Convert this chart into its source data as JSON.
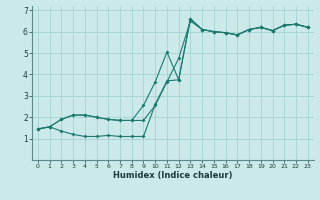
{
  "xlabel": "Humidex (Indice chaleur)",
  "bg_color": "#cce9ea",
  "line_color": "#1a7a6e",
  "grid_color": "#9ecece",
  "xlim": [
    -0.5,
    23.5
  ],
  "ylim": [
    0,
    7.2
  ],
  "xticks": [
    0,
    1,
    2,
    3,
    4,
    5,
    6,
    7,
    8,
    9,
    10,
    11,
    12,
    13,
    14,
    15,
    16,
    17,
    18,
    19,
    20,
    21,
    22,
    23
  ],
  "yticks": [
    1,
    2,
    3,
    4,
    5,
    6,
    7
  ],
  "line1_x": [
    0,
    1,
    2,
    3,
    4,
    5,
    6,
    7,
    8,
    9,
    10,
    11,
    12,
    13,
    14,
    15,
    16,
    17,
    18,
    19,
    20,
    21,
    22,
    23
  ],
  "line1_y": [
    1.45,
    1.55,
    1.35,
    1.2,
    1.1,
    1.1,
    1.15,
    1.1,
    1.1,
    1.1,
    2.6,
    3.7,
    3.75,
    6.6,
    6.1,
    6.0,
    5.95,
    5.85,
    6.1,
    6.2,
    6.05,
    6.3,
    6.35,
    6.2
  ],
  "line2_x": [
    0,
    1,
    2,
    3,
    4,
    5,
    6,
    7,
    8,
    9,
    10,
    11,
    12,
    13,
    14,
    15,
    16,
    17,
    18,
    19,
    20,
    21,
    22,
    23
  ],
  "line2_y": [
    1.45,
    1.55,
    1.9,
    2.1,
    2.1,
    2.0,
    1.9,
    1.85,
    1.85,
    2.55,
    3.65,
    5.05,
    3.75,
    6.6,
    6.1,
    6.0,
    5.95,
    5.85,
    6.1,
    6.2,
    6.05,
    6.3,
    6.35,
    6.2
  ],
  "line3_x": [
    0,
    1,
    2,
    3,
    4,
    5,
    6,
    7,
    8,
    9,
    10,
    11,
    12,
    13,
    14,
    15,
    16,
    17,
    18,
    19,
    20,
    21,
    22,
    23
  ],
  "line3_y": [
    1.45,
    1.55,
    1.9,
    2.1,
    2.1,
    2.0,
    1.9,
    1.85,
    1.85,
    1.85,
    2.55,
    3.65,
    4.75,
    6.5,
    6.1,
    6.0,
    5.95,
    5.85,
    6.1,
    6.2,
    6.05,
    6.3,
    6.35,
    6.2
  ]
}
